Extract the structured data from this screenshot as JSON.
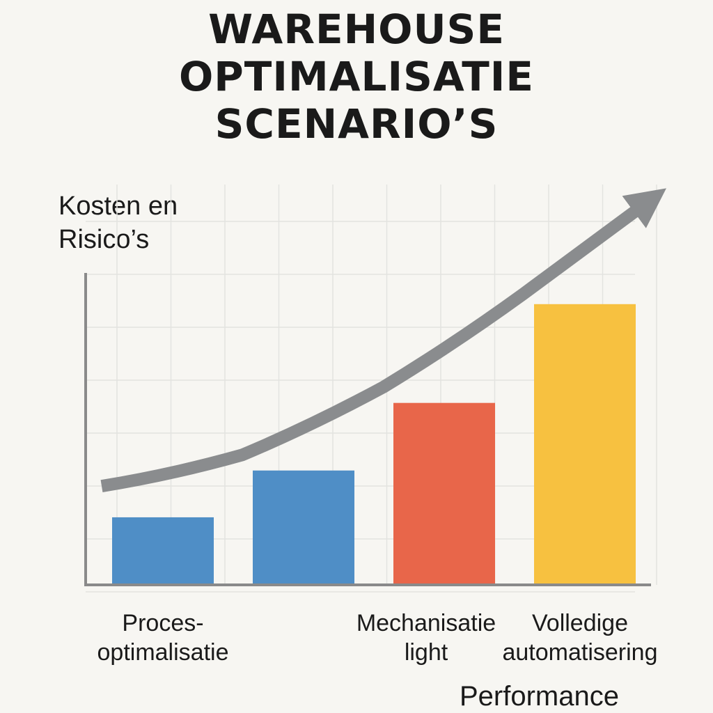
{
  "chart_data": {
    "type": "bar",
    "title_lines": [
      "WAREHOUSE",
      "OPTIMALISATIE",
      "SCENARIO’S"
    ],
    "ylabel_lines": [
      "Kosten en",
      "Risico’s"
    ],
    "xlabel": "Performance",
    "categories": [
      [
        "Proces-",
        "optimalisatie"
      ],
      [],
      [
        "Mechanisatie",
        "light"
      ],
      [
        "Volledige",
        "automatisering"
      ]
    ],
    "values": [
      13,
      22,
      35,
      54
    ],
    "bar_colors": [
      "#4f8ec6",
      "#4f8ec6",
      "#e8664a",
      "#f7c140"
    ],
    "ylim": [
      0,
      60
    ],
    "grid": true,
    "trend_arrow": {
      "color": "#8a8c8e",
      "points": [
        [
          0,
          19
        ],
        [
          1,
          25
        ],
        [
          2,
          38
        ],
        [
          3,
          56
        ],
        [
          3.9,
          74
        ]
      ]
    }
  }
}
